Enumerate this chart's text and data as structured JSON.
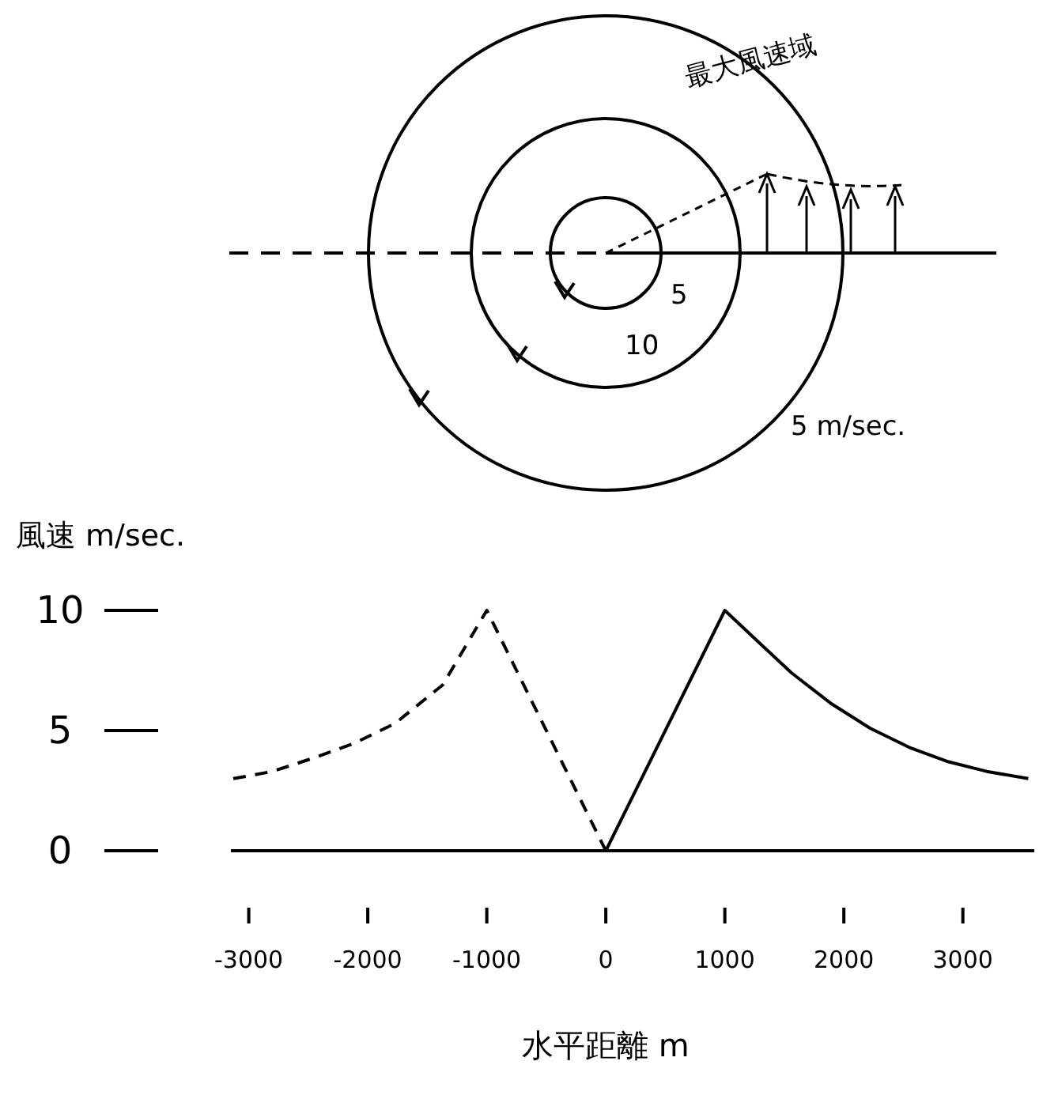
{
  "chart_data": {
    "type": "line",
    "xlabel": "水平距離 m",
    "ylabel": "風速 m/sec.",
    "xlim": [
      -3150,
      3600
    ],
    "ylim": [
      0,
      10
    ],
    "xticks": [
      -3000,
      -2000,
      -1000,
      0,
      1000,
      2000,
      3000
    ],
    "yticks": [
      0,
      5,
      10
    ],
    "grid": false,
    "series": [
      {
        "color": "#000000",
        "line_style": "dashed",
        "x": [
          -3130,
          -2800,
          -2430,
          -2100,
          -1770,
          -1370,
          -1000,
          0
        ],
        "values": [
          3.0,
          3.3,
          3.9,
          4.5,
          5.3,
          6.9,
          10,
          0
        ]
      },
      {
        "color": "#000000",
        "line_style": "solid",
        "x": [
          0,
          1000,
          1300,
          1560,
          1900,
          2220,
          2550,
          2880,
          3200,
          3550
        ],
        "values": [
          0,
          10,
          8.6,
          7.4,
          6.1,
          5.1,
          4.3,
          3.7,
          3.3,
          3.0
        ]
      }
    ],
    "annotations": [
      "最大風速域",
      "5",
      "10",
      "5 m/sec."
    ]
  }
}
